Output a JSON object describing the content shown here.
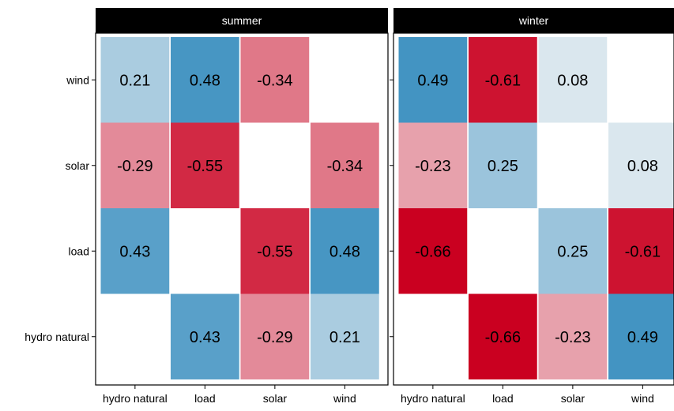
{
  "chart_data": {
    "type": "heatmap",
    "x_categories": [
      "hydro natural",
      "load",
      "solar",
      "wind"
    ],
    "y_categories": [
      "hydro natural",
      "load",
      "solar",
      "wind"
    ],
    "color_scale": {
      "negative": "#ca0020",
      "neutral": "#f7f7f7",
      "positive": "#0571b0",
      "limit": 0.66
    },
    "facets": [
      {
        "name": "summer",
        "cells": [
          {
            "x": "hydro natural",
            "y": "wind",
            "value": 0.21,
            "label": "0.21"
          },
          {
            "x": "load",
            "y": "wind",
            "value": 0.48,
            "label": "0.48"
          },
          {
            "x": "solar",
            "y": "wind",
            "value": -0.34,
            "label": "-0.34"
          },
          {
            "x": "hydro natural",
            "y": "solar",
            "value": -0.29,
            "label": "-0.29"
          },
          {
            "x": "load",
            "y": "solar",
            "value": -0.55,
            "label": "-0.55"
          },
          {
            "x": "wind",
            "y": "solar",
            "value": -0.34,
            "label": "-0.34"
          },
          {
            "x": "hydro natural",
            "y": "load",
            "value": 0.43,
            "label": "0.43"
          },
          {
            "x": "solar",
            "y": "load",
            "value": -0.55,
            "label": "-0.55"
          },
          {
            "x": "wind",
            "y": "load",
            "value": 0.48,
            "label": "0.48"
          },
          {
            "x": "load",
            "y": "hydro natural",
            "value": 0.43,
            "label": "0.43"
          },
          {
            "x": "solar",
            "y": "hydro natural",
            "value": -0.29,
            "label": "-0.29"
          },
          {
            "x": "wind",
            "y": "hydro natural",
            "value": 0.21,
            "label": "0.21"
          }
        ]
      },
      {
        "name": "winter",
        "cells": [
          {
            "x": "hydro natural",
            "y": "wind",
            "value": 0.49,
            "label": "0.49"
          },
          {
            "x": "load",
            "y": "wind",
            "value": -0.61,
            "label": "-0.61"
          },
          {
            "x": "solar",
            "y": "wind",
            "value": 0.08,
            "label": "0.08"
          },
          {
            "x": "hydro natural",
            "y": "solar",
            "value": -0.23,
            "label": "-0.23"
          },
          {
            "x": "load",
            "y": "solar",
            "value": 0.25,
            "label": "0.25"
          },
          {
            "x": "wind",
            "y": "solar",
            "value": 0.08,
            "label": "0.08"
          },
          {
            "x": "hydro natural",
            "y": "load",
            "value": -0.66,
            "label": "-0.66"
          },
          {
            "x": "solar",
            "y": "load",
            "value": 0.25,
            "label": "0.25"
          },
          {
            "x": "wind",
            "y": "load",
            "value": -0.61,
            "label": "-0.61"
          },
          {
            "x": "load",
            "y": "hydro natural",
            "value": -0.66,
            "label": "-0.66"
          },
          {
            "x": "solar",
            "y": "hydro natural",
            "value": -0.23,
            "label": "-0.23"
          },
          {
            "x": "wind",
            "y": "hydro natural",
            "value": 0.49,
            "label": "0.49"
          }
        ]
      }
    ],
    "grid": false,
    "legend": "none"
  }
}
